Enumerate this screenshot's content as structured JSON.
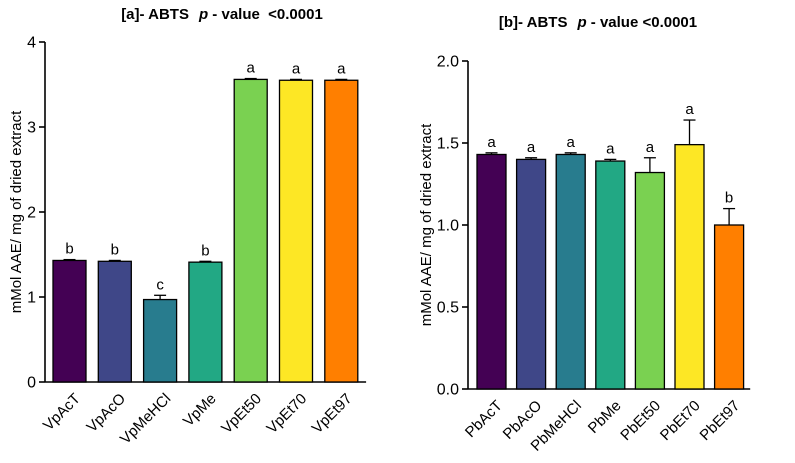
{
  "chart_data": [
    {
      "type": "bar",
      "title_parts": {
        "prefix": "[a]- ABTS",
        "p": "p",
        "suffix": " - value  <0.0001"
      },
      "ylabel": "mMol AAE/ mg of dried extract",
      "xlabel": "",
      "ylim": [
        0,
        4
      ],
      "yticks": [
        "0",
        "1",
        "2",
        "3",
        "4"
      ],
      "ytick_values": [
        0,
        1,
        2,
        3,
        4
      ],
      "categories": [
        "VpAcT",
        "VpAcO",
        "VpMeHCl",
        "VpMe",
        "VpEt50",
        "VpEt70",
        "VpEt97"
      ],
      "values": [
        1.43,
        1.42,
        0.97,
        1.41,
        3.56,
        3.55,
        3.55
      ],
      "errors": [
        0.01,
        0.01,
        0.05,
        0.01,
        0.01,
        0.01,
        0.01
      ],
      "labels": [
        "b",
        "b",
        "c",
        "b",
        "a",
        "a",
        "a"
      ],
      "colors": [
        "#440154",
        "#3f4788",
        "#287c8e",
        "#22a884",
        "#7ad151",
        "#fde725",
        "#ff7f00"
      ]
    },
    {
      "type": "bar",
      "title_parts": {
        "prefix": "[b]- ABTS",
        "p": "p",
        "suffix": " - value <0.0001"
      },
      "ylabel": "mMol AAE/ mg of dried extract",
      "xlabel": "",
      "ylim": [
        0,
        2
      ],
      "yticks": [
        "0.0",
        "0.5",
        "1.0",
        "1.5",
        "2.0"
      ],
      "ytick_values": [
        0,
        0.5,
        1,
        1.5,
        2
      ],
      "categories": [
        "PbAcT",
        "PbAcO",
        "PbMeHCl",
        "PbMe",
        "PbEt50",
        "PbEt70",
        "PbEt97"
      ],
      "values": [
        1.43,
        1.4,
        1.43,
        1.39,
        1.32,
        1.49,
        1.0
      ],
      "errors": [
        0.01,
        0.01,
        0.01,
        0.01,
        0.09,
        0.15,
        0.1
      ],
      "labels": [
        "a",
        "a",
        "a",
        "a",
        "a",
        "a",
        "b"
      ],
      "colors": [
        "#440154",
        "#3f4788",
        "#287c8e",
        "#22a884",
        "#7ad151",
        "#fde725",
        "#ff7f00"
      ]
    }
  ]
}
